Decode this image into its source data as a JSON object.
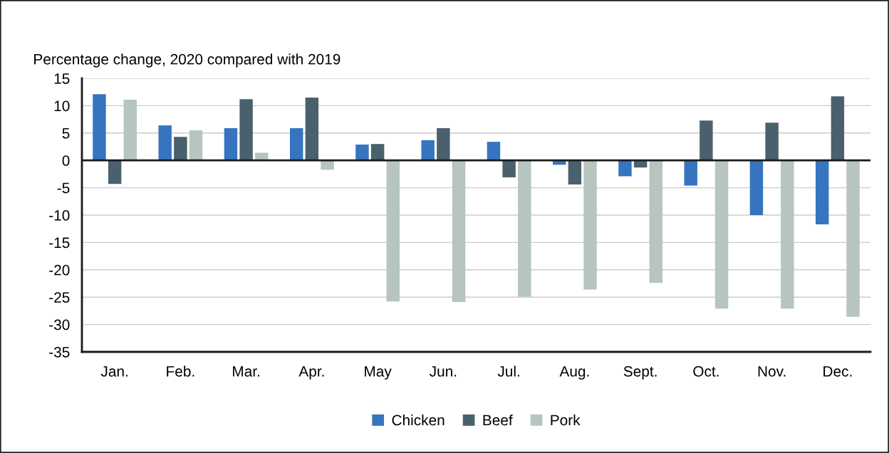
{
  "chart_data": {
    "type": "bar",
    "ylabel": "Percentage change, 2020 compared with 2019",
    "categories": [
      "Jan.",
      "Feb.",
      "Mar.",
      "Apr.",
      "May",
      "Jun.",
      "Jul.",
      "Aug.",
      "Sept.",
      "Oct.",
      "Nov.",
      "Dec."
    ],
    "series": [
      {
        "name": "Chicken",
        "color": "#3674bf",
        "values": [
          12.1,
          6.4,
          5.9,
          5.9,
          2.9,
          3.7,
          3.4,
          -0.8,
          -2.9,
          -4.6,
          -10.0,
          -11.7
        ]
      },
      {
        "name": "Beef",
        "color": "#4a616d",
        "values": [
          -4.3,
          4.3,
          11.2,
          11.5,
          3.0,
          5.9,
          -3.1,
          -4.4,
          -1.3,
          7.3,
          6.9,
          11.7
        ]
      },
      {
        "name": "Pork",
        "color": "#b6c5be",
        "values": [
          11.1,
          5.5,
          1.4,
          -1.7,
          -25.8,
          -25.9,
          -24.9,
          -23.6,
          -22.4,
          -27.1,
          -27.1,
          -28.6
        ]
      }
    ],
    "ylim": [
      -35,
      15
    ],
    "yticks": [
      -35,
      -30,
      -25,
      -20,
      -15,
      -10,
      -5,
      0,
      5,
      10,
      15
    ],
    "ref_lines": [
      {
        "axis": "y",
        "value": 0,
        "color": "#1a1a1a"
      }
    ],
    "grid": "y",
    "legend": "bottom"
  }
}
